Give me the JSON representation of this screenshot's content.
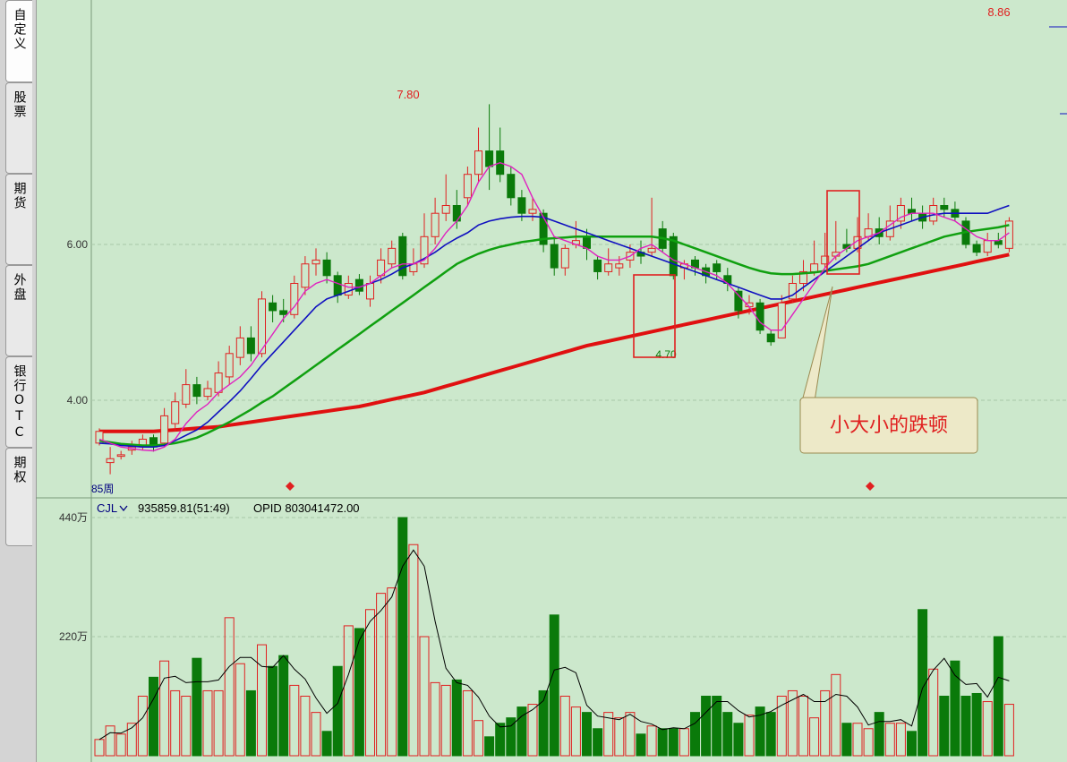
{
  "sidebar": {
    "tabs": [
      {
        "label": "自定义",
        "active": true
      },
      {
        "label": "股票",
        "active": false
      },
      {
        "label": "期货",
        "active": false
      },
      {
        "label": "外盘",
        "active": false
      },
      {
        "label": "银行OTC",
        "active": false
      },
      {
        "label": "期权",
        "active": false
      }
    ]
  },
  "colors": {
    "background": "#cce8cc",
    "up": "#e02020",
    "down": "#0a7a0a",
    "ma5": "#e020c0",
    "ma10": "#1010c0",
    "ma20": "#10a010",
    "ma60": "#e01010",
    "grid": "#a8c8a8"
  },
  "indicator_bar": {
    "name": "CJL",
    "dropdown_icon": "chevron-down-icon",
    "values": "935859.81(51:49)",
    "opid": "OPID 803041472.00"
  },
  "annotations": {
    "callout": "小大小的跌顿",
    "high_label": "8.86",
    "peak_label": "7.80",
    "low_label": "4.70",
    "period_label": "85周"
  },
  "chart_data": [
    {
      "type": "candlestick",
      "title": "",
      "y_ticks": [
        "6.00",
        "4.00"
      ],
      "y_tick_values": [
        6.0,
        4.0
      ],
      "ylim": [
        3.1,
        9.2
      ],
      "grid": "horizontal dashed",
      "x_count": 85,
      "candles": [
        [
          3.45,
          3.6,
          3.64,
          3.42
        ],
        [
          3.2,
          3.25,
          3.4,
          3.05
        ],
        [
          3.28,
          3.3,
          3.35,
          3.24
        ],
        [
          3.36,
          3.4,
          3.48,
          3.3
        ],
        [
          3.4,
          3.5,
          3.56,
          3.36
        ],
        [
          3.52,
          3.4,
          3.56,
          3.34
        ],
        [
          3.45,
          3.8,
          3.9,
          3.4
        ],
        [
          3.7,
          3.98,
          4.1,
          3.6
        ],
        [
          3.95,
          4.2,
          4.4,
          3.9
        ],
        [
          4.2,
          4.05,
          4.3,
          3.95
        ],
        [
          4.05,
          4.15,
          4.25,
          4.0
        ],
        [
          4.1,
          4.35,
          4.5,
          4.05
        ],
        [
          4.3,
          4.6,
          4.7,
          4.2
        ],
        [
          4.55,
          4.8,
          4.95,
          4.45
        ],
        [
          4.8,
          4.6,
          4.95,
          4.5
        ],
        [
          4.6,
          5.3,
          5.4,
          4.55
        ],
        [
          5.25,
          5.15,
          5.35,
          5.0
        ],
        [
          5.15,
          5.1,
          5.3,
          5.0
        ],
        [
          5.1,
          5.5,
          5.6,
          5.05
        ],
        [
          5.45,
          5.75,
          5.85,
          5.35
        ],
        [
          5.75,
          5.8,
          5.95,
          5.6
        ],
        [
          5.8,
          5.6,
          5.9,
          5.5
        ],
        [
          5.6,
          5.35,
          5.65,
          5.25
        ],
        [
          5.35,
          5.5,
          5.6,
          5.3
        ],
        [
          5.55,
          5.4,
          5.62,
          5.35
        ],
        [
          5.3,
          5.5,
          5.6,
          5.2
        ],
        [
          5.6,
          5.8,
          5.95,
          5.5
        ],
        [
          5.75,
          5.95,
          6.05,
          5.7
        ],
        [
          6.1,
          5.6,
          6.15,
          5.55
        ],
        [
          5.65,
          5.75,
          5.95,
          5.6
        ],
        [
          5.75,
          6.1,
          6.4,
          5.7
        ],
        [
          6.1,
          6.4,
          6.6,
          6.0
        ],
        [
          6.4,
          6.5,
          6.9,
          6.3
        ],
        [
          6.5,
          6.3,
          6.7,
          6.2
        ],
        [
          6.6,
          6.9,
          7.0,
          6.5
        ],
        [
          6.9,
          7.2,
          7.5,
          6.8
        ],
        [
          7.2,
          7.0,
          7.8,
          6.7
        ],
        [
          7.2,
          6.9,
          7.5,
          6.8
        ],
        [
          6.9,
          6.6,
          7.0,
          6.5
        ],
        [
          6.6,
          6.4,
          6.7,
          6.3
        ],
        [
          6.4,
          6.45,
          6.6,
          6.3
        ],
        [
          6.4,
          6.0,
          6.45,
          5.9
        ],
        [
          6.0,
          5.7,
          6.1,
          5.6
        ],
        [
          5.7,
          5.95,
          6.0,
          5.6
        ],
        [
          6.0,
          6.05,
          6.3,
          5.95
        ],
        [
          6.1,
          5.95,
          6.2,
          5.8
        ],
        [
          5.8,
          5.65,
          5.85,
          5.55
        ],
        [
          5.65,
          5.75,
          5.95,
          5.6
        ],
        [
          5.7,
          5.75,
          5.85,
          5.6
        ],
        [
          5.8,
          5.9,
          6.0,
          5.7
        ],
        [
          5.9,
          5.85,
          6.05,
          5.75
        ],
        [
          5.9,
          5.95,
          6.6,
          5.85
        ],
        [
          6.2,
          5.95,
          6.3,
          5.9
        ],
        [
          6.1,
          5.6,
          6.15,
          5.55
        ],
        [
          5.7,
          5.75,
          5.8,
          5.55
        ],
        [
          5.8,
          5.7,
          5.85,
          5.6
        ],
        [
          5.7,
          5.6,
          5.75,
          5.5
        ],
        [
          5.75,
          5.65,
          5.8,
          5.55
        ],
        [
          5.6,
          5.5,
          5.7,
          5.4
        ],
        [
          5.4,
          5.15,
          5.45,
          5.05
        ],
        [
          5.2,
          5.25,
          5.35,
          5.1
        ],
        [
          5.25,
          4.9,
          5.3,
          4.85
        ],
        [
          4.85,
          4.75,
          4.9,
          4.7
        ],
        [
          4.8,
          5.25,
          5.35,
          4.8
        ],
        [
          5.3,
          5.5,
          5.6,
          5.25
        ],
        [
          5.5,
          5.65,
          5.8,
          5.4
        ],
        [
          5.65,
          5.75,
          6.05,
          5.6
        ],
        [
          5.75,
          5.85,
          6.15,
          5.7
        ],
        [
          5.85,
          5.9,
          6.3,
          5.8
        ],
        [
          6.0,
          5.95,
          6.2,
          5.9
        ],
        [
          5.95,
          6.1,
          6.35,
          5.9
        ],
        [
          6.1,
          6.2,
          6.4,
          6.05
        ],
        [
          6.2,
          6.1,
          6.35,
          6.0
        ],
        [
          6.1,
          6.3,
          6.5,
          6.05
        ],
        [
          6.3,
          6.5,
          6.6,
          6.2
        ],
        [
          6.45,
          6.4,
          6.6,
          6.3
        ],
        [
          6.4,
          6.3,
          6.5,
          6.2
        ],
        [
          6.3,
          6.5,
          6.6,
          6.25
        ],
        [
          6.5,
          6.45,
          6.6,
          6.35
        ],
        [
          6.45,
          6.35,
          6.55,
          6.3
        ],
        [
          6.3,
          6.0,
          6.35,
          5.95
        ],
        [
          6.0,
          5.9,
          6.05,
          5.85
        ],
        [
          5.9,
          6.05,
          6.15,
          5.85
        ],
        [
          6.05,
          6.0,
          6.15,
          5.95
        ],
        [
          5.95,
          6.3,
          6.35,
          5.9
        ]
      ],
      "series": [
        {
          "name": "MA5",
          "values": [
            3.5,
            3.45,
            3.4,
            3.38,
            3.36,
            3.35,
            3.4,
            3.5,
            3.7,
            3.85,
            3.95,
            4.1,
            4.2,
            4.3,
            4.45,
            4.65,
            4.85,
            5.05,
            5.2,
            5.4,
            5.5,
            5.55,
            5.5,
            5.45,
            5.45,
            5.5,
            5.6,
            5.7,
            5.75,
            5.75,
            5.8,
            5.95,
            6.15,
            6.3,
            6.5,
            6.8,
            7.0,
            7.05,
            7.0,
            6.9,
            6.6,
            6.35,
            6.1,
            6.05,
            6.0,
            5.95,
            5.85,
            5.8,
            5.8,
            5.85,
            5.95,
            6.0,
            5.9,
            5.8,
            5.75,
            5.7,
            5.65,
            5.6,
            5.5,
            5.35,
            5.2,
            5.0,
            4.9,
            4.9,
            5.1,
            5.3,
            5.5,
            5.7,
            5.85,
            5.95,
            6.05,
            6.1,
            6.15,
            6.25,
            6.35,
            6.4,
            6.4,
            6.4,
            6.35,
            6.3,
            6.2,
            6.1,
            6.05,
            6.05,
            6.15
          ]
        },
        {
          "name": "MA10",
          "values": [
            3.45,
            3.44,
            3.42,
            3.41,
            3.4,
            3.4,
            3.42,
            3.48,
            3.55,
            3.62,
            3.72,
            3.85,
            3.98,
            4.12,
            4.28,
            4.45,
            4.6,
            4.75,
            4.9,
            5.05,
            5.2,
            5.3,
            5.35,
            5.4,
            5.45,
            5.5,
            5.55,
            5.62,
            5.7,
            5.75,
            5.82,
            5.9,
            6.0,
            6.08,
            6.15,
            6.25,
            6.3,
            6.33,
            6.35,
            6.36,
            6.36,
            6.35,
            6.3,
            6.25,
            6.2,
            6.15,
            6.1,
            6.05,
            6.0,
            5.95,
            5.9,
            5.85,
            5.8,
            5.75,
            5.7,
            5.65,
            5.6,
            5.55,
            5.5,
            5.45,
            5.4,
            5.35,
            5.3,
            5.3,
            5.35,
            5.45,
            5.55,
            5.65,
            5.75,
            5.85,
            5.95,
            6.05,
            6.15,
            6.2,
            6.25,
            6.3,
            6.35,
            6.38,
            6.4,
            6.4,
            6.4,
            6.4,
            6.4,
            6.45,
            6.5
          ]
        },
        {
          "name": "MA20",
          "values": [
            3.48,
            3.46,
            3.44,
            3.43,
            3.42,
            3.42,
            3.43,
            3.45,
            3.48,
            3.52,
            3.58,
            3.65,
            3.72,
            3.8,
            3.88,
            3.97,
            4.05,
            4.15,
            4.25,
            4.35,
            4.45,
            4.55,
            4.65,
            4.75,
            4.85,
            4.95,
            5.05,
            5.15,
            5.25,
            5.35,
            5.45,
            5.55,
            5.65,
            5.75,
            5.82,
            5.88,
            5.93,
            5.97,
            6.0,
            6.03,
            6.05,
            6.07,
            6.08,
            6.09,
            6.1,
            6.1,
            6.1,
            6.1,
            6.1,
            6.1,
            6.1,
            6.1,
            6.08,
            6.05,
            6.0,
            5.95,
            5.9,
            5.85,
            5.8,
            5.75,
            5.7,
            5.66,
            5.63,
            5.62,
            5.62,
            5.63,
            5.64,
            5.66,
            5.68,
            5.7,
            5.72,
            5.75,
            5.8,
            5.85,
            5.9,
            5.95,
            6.0,
            6.05,
            6.1,
            6.13,
            6.16,
            6.18,
            6.2,
            6.22,
            6.25
          ]
        },
        {
          "name": "MA60",
          "values": [
            3.6,
            3.6,
            3.6,
            3.6,
            3.6,
            3.6,
            3.61,
            3.62,
            3.63,
            3.64,
            3.65,
            3.66,
            3.68,
            3.7,
            3.72,
            3.74,
            3.76,
            3.78,
            3.8,
            3.82,
            3.84,
            3.86,
            3.88,
            3.9,
            3.92,
            3.95,
            3.98,
            4.01,
            4.04,
            4.07,
            4.1,
            4.14,
            4.18,
            4.22,
            4.26,
            4.3,
            4.34,
            4.38,
            4.42,
            4.46,
            4.5,
            4.54,
            4.58,
            4.62,
            4.66,
            4.7,
            4.73,
            4.76,
            4.79,
            4.82,
            4.85,
            4.88,
            4.91,
            4.94,
            4.97,
            5.0,
            5.03,
            5.06,
            5.09,
            5.12,
            5.15,
            5.18,
            5.21,
            5.24,
            5.27,
            5.3,
            5.33,
            5.36,
            5.39,
            5.42,
            5.45,
            5.48,
            5.51,
            5.54,
            5.57,
            5.6,
            5.63,
            5.66,
            5.69,
            5.72,
            5.75,
            5.78,
            5.81,
            5.84,
            5.87
          ]
        }
      ]
    },
    {
      "type": "bar",
      "title": "",
      "y_ticks": [
        "440万",
        "220万"
      ],
      "y_tick_values": [
        440,
        220
      ],
      "ylim": [
        0,
        440
      ],
      "volume": [
        30,
        55,
        40,
        60,
        110,
        145,
        175,
        120,
        110,
        180,
        120,
        120,
        255,
        170,
        120,
        205,
        165,
        185,
        130,
        110,
        80,
        45,
        165,
        240,
        235,
        270,
        300,
        310,
        440,
        390,
        220,
        135,
        130,
        140,
        120,
        65,
        35,
        60,
        70,
        90,
        95,
        120,
        260,
        110,
        90,
        80,
        50,
        80,
        70,
        80,
        40,
        55,
        50,
        50,
        50,
        80,
        110,
        110,
        80,
        60,
        75,
        90,
        80,
        110,
        120,
        110,
        70,
        120,
        150,
        60,
        60,
        50,
        80,
        60,
        60,
        45,
        270,
        160,
        110,
        175,
        110,
        115,
        100,
        220,
        95
      ]
    }
  ]
}
